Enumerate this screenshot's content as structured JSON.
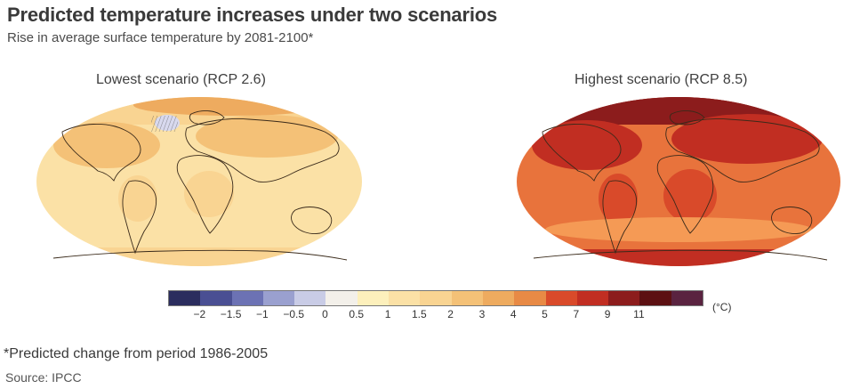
{
  "header": {
    "title": "Predicted temperature increases under two scenarios",
    "subtitle": "Rise in average surface temperature by 2081-2100*"
  },
  "maps": [
    {
      "label": "Lowest scenario (RCP 2.6)",
      "ocean_color": "#fbe1a6",
      "zone_colors": [
        "#f9d492",
        "#f4c177",
        "#eeab5f",
        "#d8d9ee"
      ]
    },
    {
      "label": "Highest scenario (RCP 8.5)",
      "ocean_color": "#e8733c",
      "zone_colors": [
        "#d94a2a",
        "#c12e22",
        "#8c1c1c",
        "#f59a55"
      ]
    }
  ],
  "legend": {
    "unit": "(°C)",
    "swatches": [
      "#2b2d5e",
      "#4a4f93",
      "#6c72b4",
      "#9aa0cf",
      "#c9cce6",
      "#f3f0ea",
      "#fdf0bc",
      "#fbe1a6",
      "#f9d492",
      "#f4c177",
      "#eeab5f",
      "#e88a45",
      "#d94a2a",
      "#c12e22",
      "#8c1c1c",
      "#5c1012",
      "#5a2340"
    ],
    "ticks": [
      "−2",
      "−1.5",
      "−1",
      "−0.5",
      "0",
      "0.5",
      "1",
      "1.5",
      "2",
      "3",
      "4",
      "5",
      "7",
      "9",
      "11"
    ]
  },
  "footer": {
    "note": "*Predicted change from period 1986-2005",
    "source": "Source: IPCC"
  }
}
